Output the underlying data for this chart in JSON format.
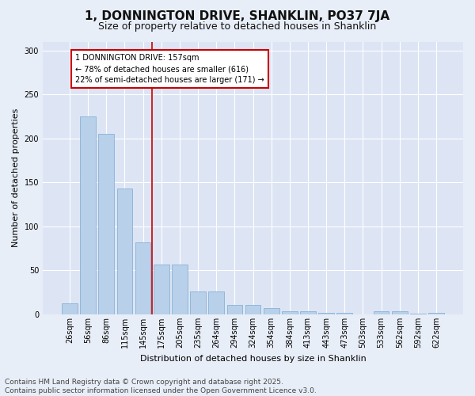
{
  "title": "1, DONNINGTON DRIVE, SHANKLIN, PO37 7JA",
  "subtitle": "Size of property relative to detached houses in Shanklin",
  "xlabel": "Distribution of detached houses by size in Shanklin",
  "ylabel": "Number of detached properties",
  "footer_line1": "Contains HM Land Registry data © Crown copyright and database right 2025.",
  "footer_line2": "Contains public sector information licensed under the Open Government Licence v3.0.",
  "categories": [
    "26sqm",
    "56sqm",
    "86sqm",
    "115sqm",
    "145sqm",
    "175sqm",
    "205sqm",
    "235sqm",
    "264sqm",
    "294sqm",
    "324sqm",
    "354sqm",
    "384sqm",
    "413sqm",
    "443sqm",
    "473sqm",
    "503sqm",
    "533sqm",
    "562sqm",
    "592sqm",
    "622sqm"
  ],
  "values": [
    13,
    225,
    205,
    143,
    82,
    57,
    57,
    26,
    26,
    11,
    11,
    7,
    4,
    4,
    2,
    2,
    0,
    4,
    4,
    1,
    2
  ],
  "bar_color": "#b8d0ea",
  "bar_edge_color": "#7aaacf",
  "vline_x": 4.5,
  "vline_color": "#cc0000",
  "annotation_text": "1 DONNINGTON DRIVE: 157sqm\n← 78% of detached houses are smaller (616)\n22% of semi-detached houses are larger (171) →",
  "annotation_box_color": "#cc0000",
  "annotation_text_color": "#000000",
  "ylim": [
    0,
    310
  ],
  "background_color": "#e8eef8",
  "plot_bg_color": "#dde5f5",
  "grid_color": "#ffffff",
  "title_fontsize": 11,
  "subtitle_fontsize": 9,
  "axis_label_fontsize": 8,
  "tick_fontsize": 7,
  "footer_fontsize": 6.5
}
